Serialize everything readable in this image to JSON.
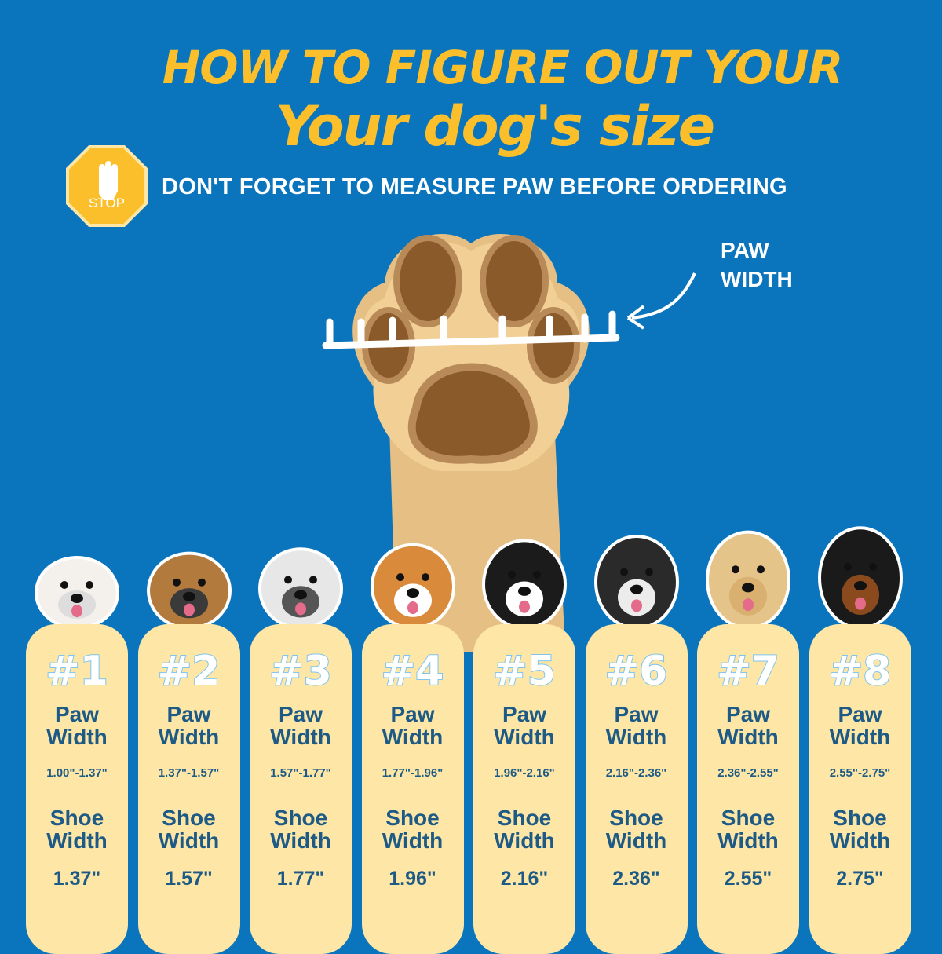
{
  "title_line1": "HOW TO FIGURE OUT YOUR",
  "title_line2": "Your dog's size",
  "stop_sign": {
    "text": "STOP",
    "icon": "hand-stop-icon",
    "color": "#fbbf2c"
  },
  "subtitle": "DON'T FORGET TO MEASURE PAW BEFORE ORDERING",
  "paw_label_line1": "PAW",
  "paw_label_line2": "WIDTH",
  "colors": {
    "background": "#0a74bd",
    "title": "#fbbf2c",
    "card": "#fde6a6",
    "card_text": "#1d5a86"
  },
  "paw_width_label": "Paw Width",
  "shoe_width_label": "Shoe Width",
  "label_paw": "Paw",
  "label_shoe": "Shoe",
  "label_width": "Width",
  "sizes": [
    {
      "number": "#1",
      "paw_width": "1.00\"-1.37\"",
      "shoe_width": "1.37\""
    },
    {
      "number": "#2",
      "paw_width": "1.37\"-1.57\"",
      "shoe_width": "1.57\""
    },
    {
      "number": "#3",
      "paw_width": "1.57\"-1.77\"",
      "shoe_width": "1.77\""
    },
    {
      "number": "#4",
      "paw_width": "1.77\"-1.96\"",
      "shoe_width": "1.96\""
    },
    {
      "number": "#5",
      "paw_width": "1.96\"-2.16\"",
      "shoe_width": "2.16\""
    },
    {
      "number": "#6",
      "paw_width": "2.16\"-2.36\"",
      "shoe_width": "2.36\""
    },
    {
      "number": "#7",
      "paw_width": "2.36\"-2.55\"",
      "shoe_width": "2.55\""
    },
    {
      "number": "#8",
      "paw_width": "2.55\"-2.75\"",
      "shoe_width": "2.75\""
    }
  ]
}
